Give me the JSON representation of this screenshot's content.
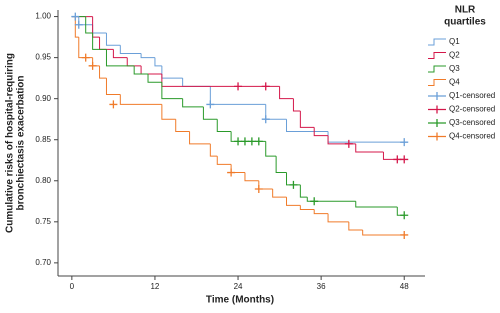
{
  "chart_data": {
    "type": "step",
    "x_label": "Time (Months)",
    "y_label": [
      "Cumulative risks of hospital-requiring",
      "bronchiectasis exacerbation"
    ],
    "legend_title": [
      "NLR",
      "quartiles"
    ],
    "xlim": [
      -2,
      51
    ],
    "ylim": [
      0.684,
      1.008
    ],
    "xticks": [
      0,
      12,
      24,
      36,
      48
    ],
    "yticks": [
      {
        "value": 0.7,
        "label": "0.70"
      },
      {
        "value": 0.75,
        "label": "0.75"
      },
      {
        "value": 0.8,
        "label": "0.80"
      },
      {
        "value": 0.85,
        "label": "0.85"
      },
      {
        "value": 0.9,
        "label": "0.90"
      },
      {
        "value": 0.95,
        "label": "0.95"
      },
      {
        "value": 1.0,
        "label": "1.00"
      }
    ],
    "series": [
      {
        "name": "Q1",
        "color": "#6a9fd8",
        "x": [
          0,
          1,
          3,
          5,
          7,
          10,
          12,
          13,
          16,
          20,
          28,
          31,
          37,
          48
        ],
        "values": [
          1.0,
          0.99,
          0.98,
          0.965,
          0.955,
          0.95,
          0.94,
          0.925,
          0.915,
          0.893,
          0.875,
          0.86,
          0.847,
          0.847
        ]
      },
      {
        "name": "Q2",
        "color": "#d4174a",
        "x": [
          0,
          3,
          4,
          6,
          8,
          10,
          13,
          30,
          32,
          33,
          35,
          37,
          41,
          45,
          48
        ],
        "values": [
          1.0,
          0.975,
          0.96,
          0.95,
          0.94,
          0.93,
          0.915,
          0.9,
          0.885,
          0.865,
          0.855,
          0.845,
          0.835,
          0.826,
          0.826
        ]
      },
      {
        "name": "Q3",
        "color": "#2a9a2a",
        "x": [
          0,
          2,
          3,
          5,
          9,
          11,
          13,
          16,
          19,
          21,
          23,
          28,
          29.5,
          31,
          33,
          34,
          41,
          47,
          48
        ],
        "values": [
          1.0,
          0.98,
          0.96,
          0.94,
          0.93,
          0.92,
          0.9,
          0.89,
          0.875,
          0.86,
          0.848,
          0.83,
          0.81,
          0.795,
          0.78,
          0.775,
          0.768,
          0.758,
          0.758
        ]
      },
      {
        "name": "Q4",
        "color": "#f07b2a",
        "x": [
          0,
          0.5,
          1,
          3,
          4,
          5,
          7,
          13,
          15,
          17,
          20,
          21,
          23,
          25,
          27,
          29,
          31,
          33,
          35,
          37,
          40,
          42,
          48
        ],
        "values": [
          1.0,
          0.975,
          0.95,
          0.94,
          0.925,
          0.905,
          0.893,
          0.875,
          0.86,
          0.845,
          0.83,
          0.82,
          0.81,
          0.8,
          0.79,
          0.78,
          0.77,
          0.765,
          0.76,
          0.75,
          0.74,
          0.734,
          0.734
        ]
      },
      {
        "name": "Q1-censored",
        "color": "#6a9fd8",
        "marker": "plus",
        "x": [
          0.5,
          1,
          20,
          28,
          48
        ],
        "values": [
          1.0,
          0.99,
          0.893,
          0.875,
          0.847
        ]
      },
      {
        "name": "Q2-censored",
        "color": "#d4174a",
        "marker": "plus",
        "x": [
          24,
          28,
          40,
          47,
          48
        ],
        "values": [
          0.915,
          0.915,
          0.845,
          0.826,
          0.826
        ]
      },
      {
        "name": "Q3-censored",
        "color": "#2a9a2a",
        "marker": "plus",
        "x": [
          24,
          25,
          26,
          27,
          32,
          35,
          48
        ],
        "values": [
          0.848,
          0.848,
          0.848,
          0.848,
          0.795,
          0.775,
          0.758
        ]
      },
      {
        "name": "Q4-censored",
        "color": "#f07b2a",
        "marker": "plus",
        "x": [
          2,
          3,
          6,
          23,
          27,
          48
        ],
        "values": [
          0.95,
          0.94,
          0.893,
          0.81,
          0.79,
          0.734
        ]
      }
    ]
  }
}
